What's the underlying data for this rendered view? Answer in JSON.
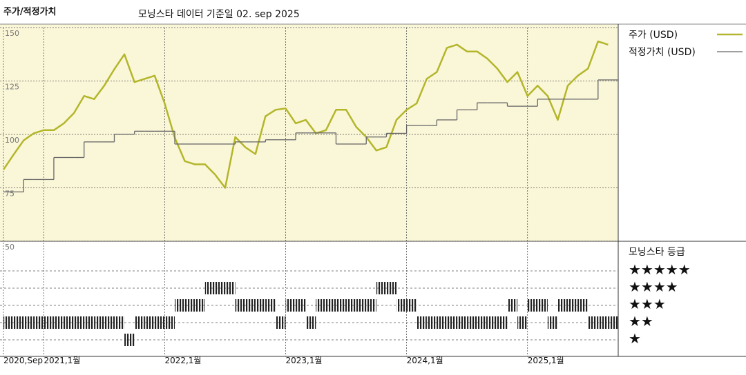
{
  "chart_data": [
    {
      "type": "line",
      "title": "주가/적정가치",
      "subtitle": "모닝스타 데이터 기준일 02. sep 2025",
      "x": [
        "2020-09",
        "2020-10",
        "2020-11",
        "2020-12",
        "2021-01",
        "2021-02",
        "2021-03",
        "2021-04",
        "2021-05",
        "2021-06",
        "2021-07",
        "2021-08",
        "2021-09",
        "2021-10",
        "2021-11",
        "2021-12",
        "2022-01",
        "2022-02",
        "2022-03",
        "2022-04",
        "2022-05",
        "2022-06",
        "2022-07",
        "2022-08",
        "2022-09",
        "2022-10",
        "2022-11",
        "2022-12",
        "2023-01",
        "2023-02",
        "2023-03",
        "2023-04",
        "2023-05",
        "2023-06",
        "2023-07",
        "2023-08",
        "2023-09",
        "2023-10",
        "2023-11",
        "2023-12",
        "2024-01",
        "2024-02",
        "2024-03",
        "2024-04",
        "2024-05",
        "2024-06",
        "2024-07",
        "2024-08",
        "2024-09",
        "2024-10",
        "2024-11",
        "2024-12",
        "2025-01",
        "2025-02",
        "2025-03",
        "2025-04",
        "2025-05",
        "2025-06",
        "2025-07",
        "2025-08",
        "2025-09"
      ],
      "series": [
        {
          "name": "주가 (USD)",
          "color": "#b3b62a",
          "step": false,
          "values": [
            83.5,
            90.5,
            97.2,
            100.5,
            102,
            102,
            105.2,
            110,
            118,
            116.5,
            122.8,
            130.5,
            137.5,
            124.5,
            126,
            127.5,
            114.5,
            98.5,
            87.5,
            86,
            86,
            81.2,
            75,
            98.8,
            94,
            90.8,
            108.5,
            111.5,
            112.2,
            105.2,
            106.8,
            100.5,
            102,
            111.5,
            111.5,
            103.5,
            98.8,
            92.5,
            94,
            106.8,
            111.5,
            114.5,
            126,
            129.2,
            140.5,
            142,
            138.8,
            138.8,
            135.5,
            130.8,
            124.5,
            129.2,
            118,
            122.8,
            118,
            106.8,
            122.8,
            127.5,
            130.8,
            143.5,
            142
          ]
        },
        {
          "name": "적정가치 (USD)",
          "color": "#666666",
          "step": true,
          "values": [
            73.1,
            73.1,
            78.9,
            78.9,
            78.9,
            89.2,
            89.2,
            89.2,
            96.5,
            96.5,
            96.5,
            100.1,
            100.1,
            101.5,
            101.5,
            101.5,
            101.5,
            95.5,
            95.5,
            95.5,
            95.5,
            95.5,
            95.5,
            96.5,
            96.5,
            96.5,
            97.5,
            97.5,
            97.5,
            100.7,
            100.7,
            100.7,
            100.7,
            95.5,
            95.5,
            95.5,
            98.8,
            98.8,
            100.5,
            100.5,
            104.2,
            104.2,
            104.2,
            106.8,
            106.8,
            111.5,
            111.5,
            114.8,
            114.8,
            114.8,
            113.2,
            113.2,
            113.2,
            116.5,
            116.5,
            116.5,
            116.5,
            116.5,
            116.5,
            125.5,
            125.5
          ]
        }
      ],
      "xlim": [
        "2020-09",
        "2025-10"
      ],
      "xticks": [
        {
          "value": "2020-09",
          "label": "2020,Sep"
        },
        {
          "value": "2021-01",
          "label": "2021,1월"
        },
        {
          "value": "2022-01",
          "label": "2022,1월"
        },
        {
          "value": "2023-01",
          "label": "2023,1월"
        },
        {
          "value": "2024-01",
          "label": "2024,1월"
        },
        {
          "value": "2025-01",
          "label": "2025,1월"
        }
      ],
      "ylim": [
        50,
        150
      ],
      "yticks": [
        50,
        75,
        100,
        125,
        150
      ],
      "grid": true,
      "legend": "right"
    },
    {
      "type": "rating",
      "title": "모닝스타 등급",
      "color": "#222222",
      "x": [
        "2020-09",
        "2020-10",
        "2020-11",
        "2020-12",
        "2021-01",
        "2021-02",
        "2021-03",
        "2021-04",
        "2021-05",
        "2021-06",
        "2021-07",
        "2021-08",
        "2021-09",
        "2021-10",
        "2021-11",
        "2021-12",
        "2022-01",
        "2022-02",
        "2022-03",
        "2022-04",
        "2022-05",
        "2022-06",
        "2022-07",
        "2022-08",
        "2022-09",
        "2022-10",
        "2022-11",
        "2022-12",
        "2023-01",
        "2023-02",
        "2023-03",
        "2023-04",
        "2023-05",
        "2023-06",
        "2023-07",
        "2023-08",
        "2023-09",
        "2023-10",
        "2023-11",
        "2023-12",
        "2024-01",
        "2024-02",
        "2024-03",
        "2024-04",
        "2024-05",
        "2024-06",
        "2024-07",
        "2024-08",
        "2024-09",
        "2024-10",
        "2024-11",
        "2024-12",
        "2025-01",
        "2025-02",
        "2025-03",
        "2025-04",
        "2025-05",
        "2025-06",
        "2025-07",
        "2025-08",
        "2025-09"
      ],
      "values": [
        2,
        2,
        2,
        2,
        2,
        2,
        2,
        2,
        2,
        2,
        2,
        2,
        1,
        2,
        2,
        2,
        2,
        3,
        3,
        3,
        4,
        4,
        4,
        3,
        3,
        3,
        3,
        2,
        3,
        3,
        2,
        3,
        3,
        3,
        3,
        3,
        3,
        4,
        4,
        3,
        3,
        2,
        2,
        2,
        2,
        2,
        2,
        2,
        2,
        2,
        3,
        2,
        3,
        3,
        2,
        3,
        3,
        3,
        2,
        2,
        2
      ],
      "rating_labels": [
        "★★★★★",
        "★★★★",
        "★★★",
        "★★",
        "★"
      ]
    }
  ]
}
